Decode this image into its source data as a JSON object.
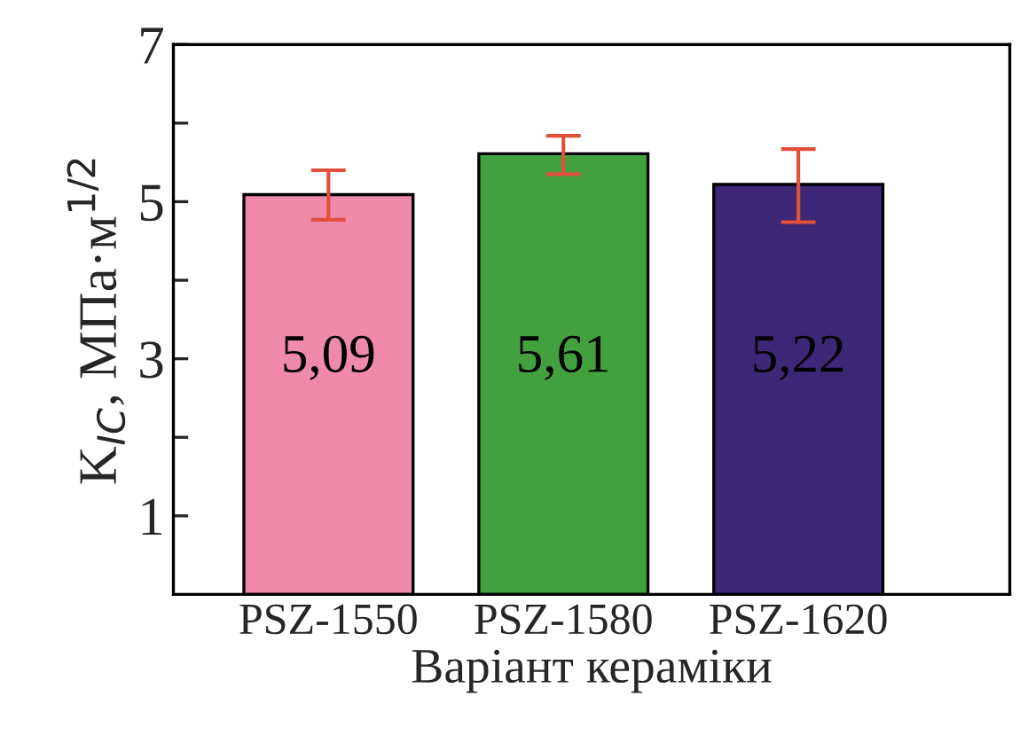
{
  "chart_data": {
    "type": "bar",
    "xlabel": "Варіант кераміки",
    "ylabel": "K$_{IC}$, МПа·м$^{1/2}$",
    "categories": [
      "PSZ-1550",
      "PSZ-1580",
      "PSZ-1620"
    ],
    "values": [
      5.09,
      5.61,
      5.22
    ],
    "colors": [
      "#f08aab",
      "#43a03e",
      "#3d2878"
    ],
    "errors": [
      [
        4.77,
        5.4
      ],
      [
        5.35,
        5.84
      ],
      [
        4.74,
        5.67
      ]
    ],
    "value_labels": [
      "5,09",
      "5,61",
      "5,22"
    ],
    "ylim": [
      0,
      7
    ],
    "yticks": [
      1,
      {
        "value": 2,
        "label": null
      },
      3,
      {
        "value": 4,
        "label": null
      },
      5,
      {
        "value": 6,
        "label": null
      },
      7
    ],
    "grid": false,
    "legend": false
  }
}
